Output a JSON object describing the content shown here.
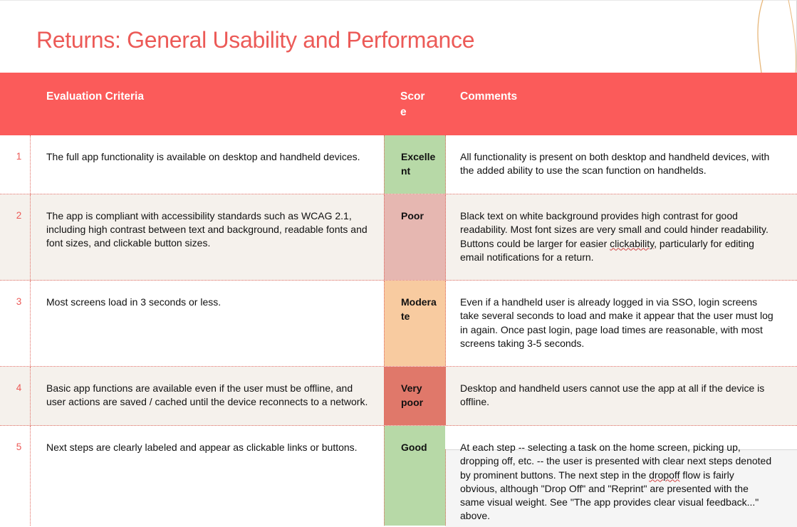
{
  "slide": {
    "title": "Returns: General Usability and Performance"
  },
  "table": {
    "headers": {
      "criteria": "Evaluation Criteria",
      "score": "Score",
      "comments": "Comments"
    },
    "rows": [
      {
        "num": "1",
        "criteria": "The full app functionality is available on desktop and handheld devices.",
        "score": "Excellent",
        "score_color": "#b7d9a7",
        "comment": "All functionality is present on both desktop and handheld devices, with the added ability to use the scan function on handhelds."
      },
      {
        "num": "2",
        "criteria": "The app is compliant with accessibility standards such as WCAG 2.1, including high contrast between text and background, readable fonts and font sizes, and clickable button sizes.",
        "score": "Poor",
        "score_color": "#e6b7b1",
        "comment_a": "Black text on white background provides high contrast for good readability. Most font sizes are very small and could hinder readability. Buttons could be larger for easier ",
        "comment_sq": "clickability",
        "comment_b": ", particularly for editing email notifications for a return."
      },
      {
        "num": "3",
        "criteria": "Most screens load in 3 seconds or less.",
        "score": "Moderate",
        "score_color": "#f8cba0",
        "comment": "Even if a handheld user is already logged in via SSO, login screens take several seconds to load and make it appear that the user must log in again. Once past login, page load times are reasonable, with most screens taking 3-5 seconds."
      },
      {
        "num": "4",
        "criteria": "Basic app functions are available even if the user must be offline, and user actions are saved / cached until the device reconnects to a network.",
        "score": "Very poor",
        "score_color": "#e0786a",
        "comment": "Desktop and handheld users cannot use the app at all if the device is offline."
      },
      {
        "num": "5",
        "criteria": "Next steps are clearly labeled and appear as clickable links or buttons.",
        "score": "Good",
        "score_color": "#b7d9a7",
        "comment_a": "At each step -- selecting a task on the home screen, picking up, dropping off, etc. -- the user is presented with clear next steps denoted by prominent buttons. The next step in the ",
        "comment_sq": "dropoff",
        "comment_b": " flow is fairly obvious, although \"Drop Off\" and \"Reprint\" are presented with the same visual weight. See \"The app provides clear visual feedback...\" above."
      }
    ]
  }
}
